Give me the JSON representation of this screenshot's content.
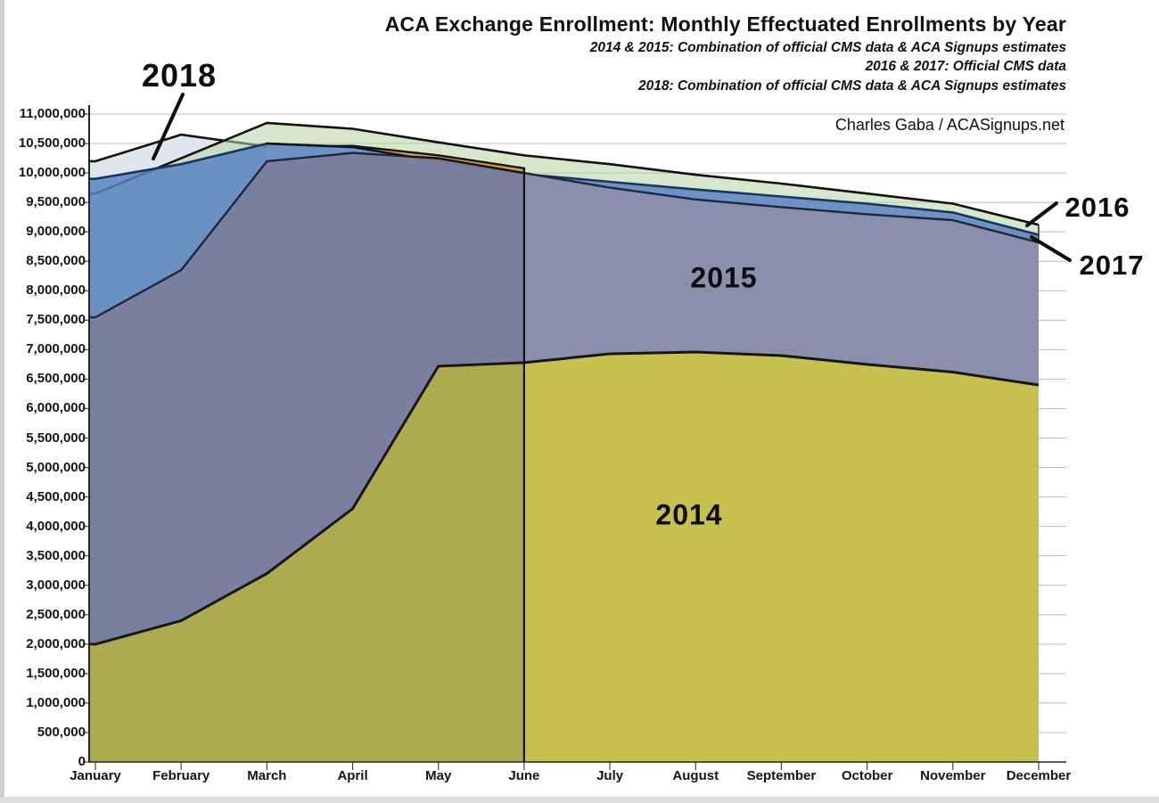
{
  "header": {
    "title": "ACA Exchange Enrollment: Monthly Effectuated Enrollments by Year",
    "subtitles": [
      "2014 & 2015: Combination of official CMS data & ACA Signups estimates",
      "2016 & 2017: Official CMS data",
      "2018: Combination of official CMS data & ACA Signups estimates"
    ],
    "attribution": "Charles Gaba / ACASignups.net"
  },
  "chart_data": {
    "type": "area",
    "mode": "overlapping",
    "title": "ACA Exchange Enrollment: Monthly Effectuated Enrollments by Year",
    "xlabel": "",
    "ylabel": "",
    "ylim": [
      0,
      11000000
    ],
    "ytick_step": 500000,
    "grid": "horizontal",
    "legend": "direct-labels-with-callouts",
    "categories": [
      "January",
      "February",
      "March",
      "April",
      "May",
      "June",
      "July",
      "August",
      "September",
      "October",
      "November",
      "December"
    ],
    "y_tick_labels": [
      "11,000,000",
      "10,500,000",
      "10,000,000",
      "9,500,000",
      "9,000,000",
      "8,500,000",
      "8,000,000",
      "7,500,000",
      "7,000,000",
      "6,500,000",
      "6,000,000",
      "5,500,000",
      "5,000,000",
      "4,500,000",
      "4,000,000",
      "3,500,000",
      "3,000,000",
      "2,500,000",
      "2,000,000",
      "1,500,000",
      "1,000,000",
      "500,000",
      "0"
    ],
    "series": [
      {
        "name": "2014",
        "color": "#c6c14e",
        "outline": "#161616",
        "values": [
          2000000,
          2400000,
          3200000,
          4300000,
          6720000,
          6780000,
          6930000,
          6960000,
          6900000,
          6750000,
          6620000,
          6400000
        ]
      },
      {
        "name": "2015",
        "color": "#8d8fa8",
        "outline": "#20263e",
        "values": [
          7550000,
          8350000,
          10200000,
          10340000,
          10250000,
          10000000,
          9750000,
          9550000,
          9420000,
          9300000,
          9200000,
          8820000
        ]
      },
      {
        "name": "2016",
        "color": "#b7d4a0",
        "outline": "#121212",
        "values": [
          9650000,
          10250000,
          10850000,
          10750000,
          10520000,
          10300000,
          10150000,
          9970000,
          9820000,
          9650000,
          9480000,
          9120000
        ]
      },
      {
        "name": "2017",
        "color": "#5a82c4",
        "outline": "#183660",
        "values": [
          9900000,
          10150000,
          10500000,
          10440000,
          10200000,
          9980000,
          9850000,
          9720000,
          9600000,
          9480000,
          9330000,
          8950000
        ]
      },
      {
        "name": "2018",
        "color_official": "#dfe6ee",
        "color_estimate": "#d9a23b",
        "outline": "#131313",
        "months_with_data": [
          "January",
          "February",
          "March",
          "April",
          "May",
          "June"
        ],
        "values": [
          10200000,
          10650000,
          10450000,
          10460000,
          10300000,
          10080000
        ],
        "official_segment_end": "March",
        "estimate_segment": "March–June"
      }
    ],
    "annotations": [
      {
        "label": "2018",
        "target_series": "2018"
      },
      {
        "label": "2015",
        "target_series": "2015"
      },
      {
        "label": "2014",
        "target_series": "2014"
      },
      {
        "label": "2016",
        "target_series": "2016"
      },
      {
        "label": "2017",
        "target_series": "2017"
      }
    ]
  }
}
